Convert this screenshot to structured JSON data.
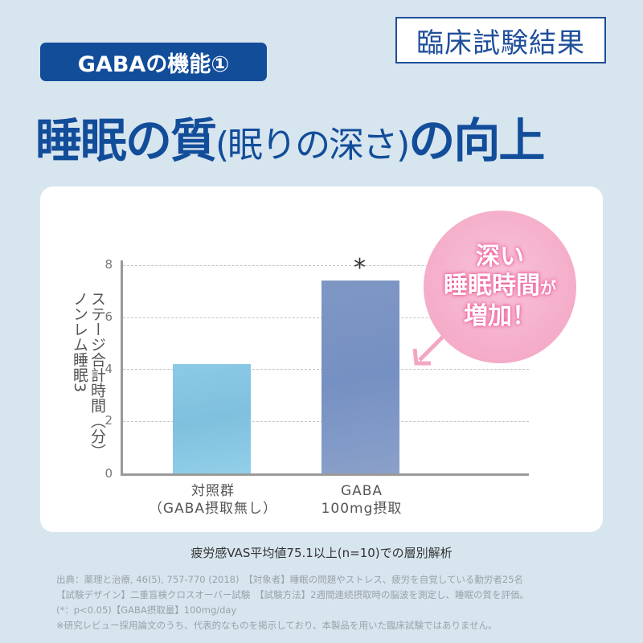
{
  "header": {
    "result_badge": "臨床試験結果",
    "function_badge": "GABAの機能①",
    "headline_part1": "睡眠の質",
    "headline_part2": "(眠りの深さ)",
    "headline_part3": "の向上"
  },
  "callout": {
    "line1": "深い",
    "line2": "睡眠時間",
    "line2_suffix": "が",
    "line3": "増加！"
  },
  "caption": "疲労感VAS平均値75.1以上(n=10)での層別解析",
  "notes": [
    "出典：薬理と治療, 46(5), 757-770 (2018)　【対象者】睡眠の問題やストレス、疲労を自覚している勤労者25名",
    "【試験デザイン】二重盲検クロスオーバー試験　【試験方法】2週間連続摂取時の脳波を測定し、睡眠の質を評価。",
    "(*：p<0.05)【GABA摂取量】100mg/day",
    "※研究レビュー採用論文のうち、代表的なものを掲示しており、本製品を用いた臨床試験ではありません。"
  ],
  "chart_data": {
    "type": "bar",
    "title": "睡眠の質(眠りの深さ)の向上",
    "categories": [
      "対照群（GABA摂取無し）",
      "GABA 100mg摂取"
    ],
    "category_lines": [
      [
        "対照群",
        "（GABA摂取無し）"
      ],
      [
        "GABA",
        "100mg摂取"
      ]
    ],
    "values": [
      4.2,
      7.4
    ],
    "colors": [
      "#8cc8e4",
      "#7d95c4"
    ],
    "annotations": [
      {
        "category": "GABA 100mg摂取",
        "text": "*"
      }
    ],
    "xlabel": "",
    "ylabel": "ノンレム睡眠3 ステージ合計時間（分）",
    "ylabel_lines": [
      "ノンレム睡眠3",
      "ステージ合計時間（分）"
    ],
    "yticks": [
      "0",
      "2",
      "4",
      "6",
      "8"
    ],
    "ylim": [
      0,
      8
    ],
    "grid": true
  }
}
